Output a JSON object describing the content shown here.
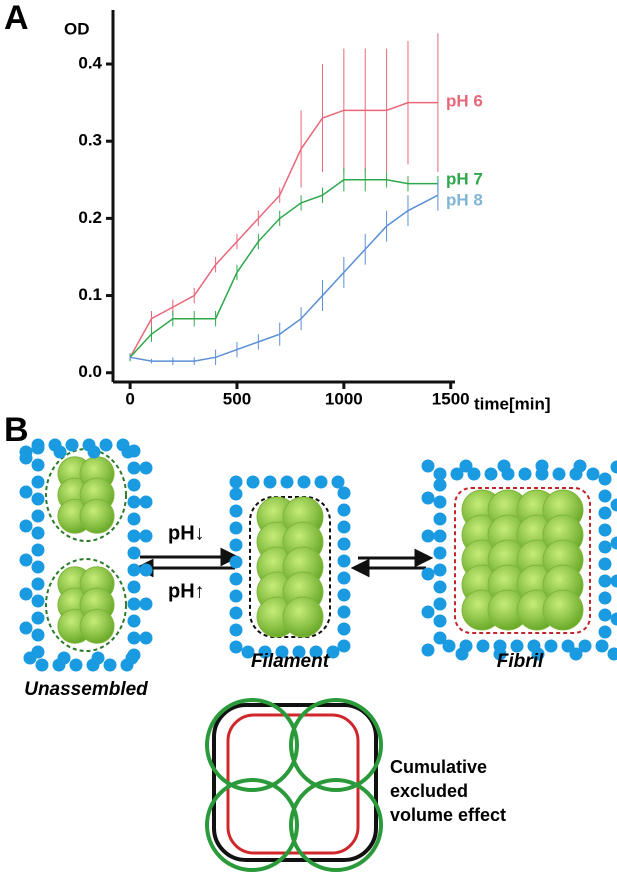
{
  "panel_labels": [
    "A",
    "B"
  ],
  "chart_data": {
    "type": "line",
    "y_label": "OD",
    "x_label": "time[min]",
    "x": [
      0,
      100,
      200,
      300,
      400,
      500,
      600,
      700,
      800,
      900,
      1000,
      1100,
      1200,
      1300,
      1440
    ],
    "series": [
      {
        "name": "pH 6",
        "color": "#e8677a",
        "values": [
          0.02,
          0.07,
          0.085,
          0.1,
          0.14,
          0.17,
          0.2,
          0.23,
          0.29,
          0.33,
          0.34,
          0.34,
          0.34,
          0.35,
          0.35
        ],
        "errors": [
          0.005,
          0.01,
          0.01,
          0.01,
          0.01,
          0.01,
          0.01,
          0.01,
          0.05,
          0.07,
          0.08,
          0.08,
          0.08,
          0.08,
          0.09
        ]
      },
      {
        "name": "pH 7",
        "color": "#2ea84a",
        "values": [
          0.02,
          0.05,
          0.07,
          0.07,
          0.07,
          0.13,
          0.17,
          0.2,
          0.22,
          0.23,
          0.25,
          0.25,
          0.25,
          0.245,
          0.245
        ],
        "errors": [
          0.005,
          0.01,
          0.01,
          0.01,
          0.01,
          0.01,
          0.01,
          0.01,
          0.01,
          0.01,
          0.015,
          0.015,
          0.01,
          0.01,
          0.01
        ]
      },
      {
        "name": "pH 8",
        "color": "#5b8fd6",
        "values": [
          0.02,
          0.015,
          0.015,
          0.015,
          0.02,
          0.03,
          0.04,
          0.05,
          0.07,
          0.1,
          0.13,
          0.16,
          0.19,
          0.21,
          0.23
        ],
        "errors": [
          0.003,
          0.003,
          0.005,
          0.005,
          0.01,
          0.01,
          0.01,
          0.015,
          0.015,
          0.02,
          0.02,
          0.02,
          0.02,
          0.02,
          0.02
        ]
      }
    ],
    "label_colors": [
      "#e8677a",
      "#2ea84a",
      "#7fb6d6"
    ],
    "xlim": [
      -80,
      1520
    ],
    "xticks": [
      0,
      500,
      1000,
      1500
    ],
    "ylim": [
      -0.012,
      0.47
    ],
    "yticks": [
      {
        "value": 0,
        "label": "0.0"
      },
      0.1,
      0.2,
      0.3,
      0.4
    ]
  },
  "diagram": {
    "ph_down": "pH↓",
    "ph_up": "pH↑",
    "unassembled": "Unassembled",
    "filament": "Filament",
    "fibril": "Fibril",
    "note": [
      "Cumulative",
      "excluded",
      "volume effect"
    ]
  }
}
